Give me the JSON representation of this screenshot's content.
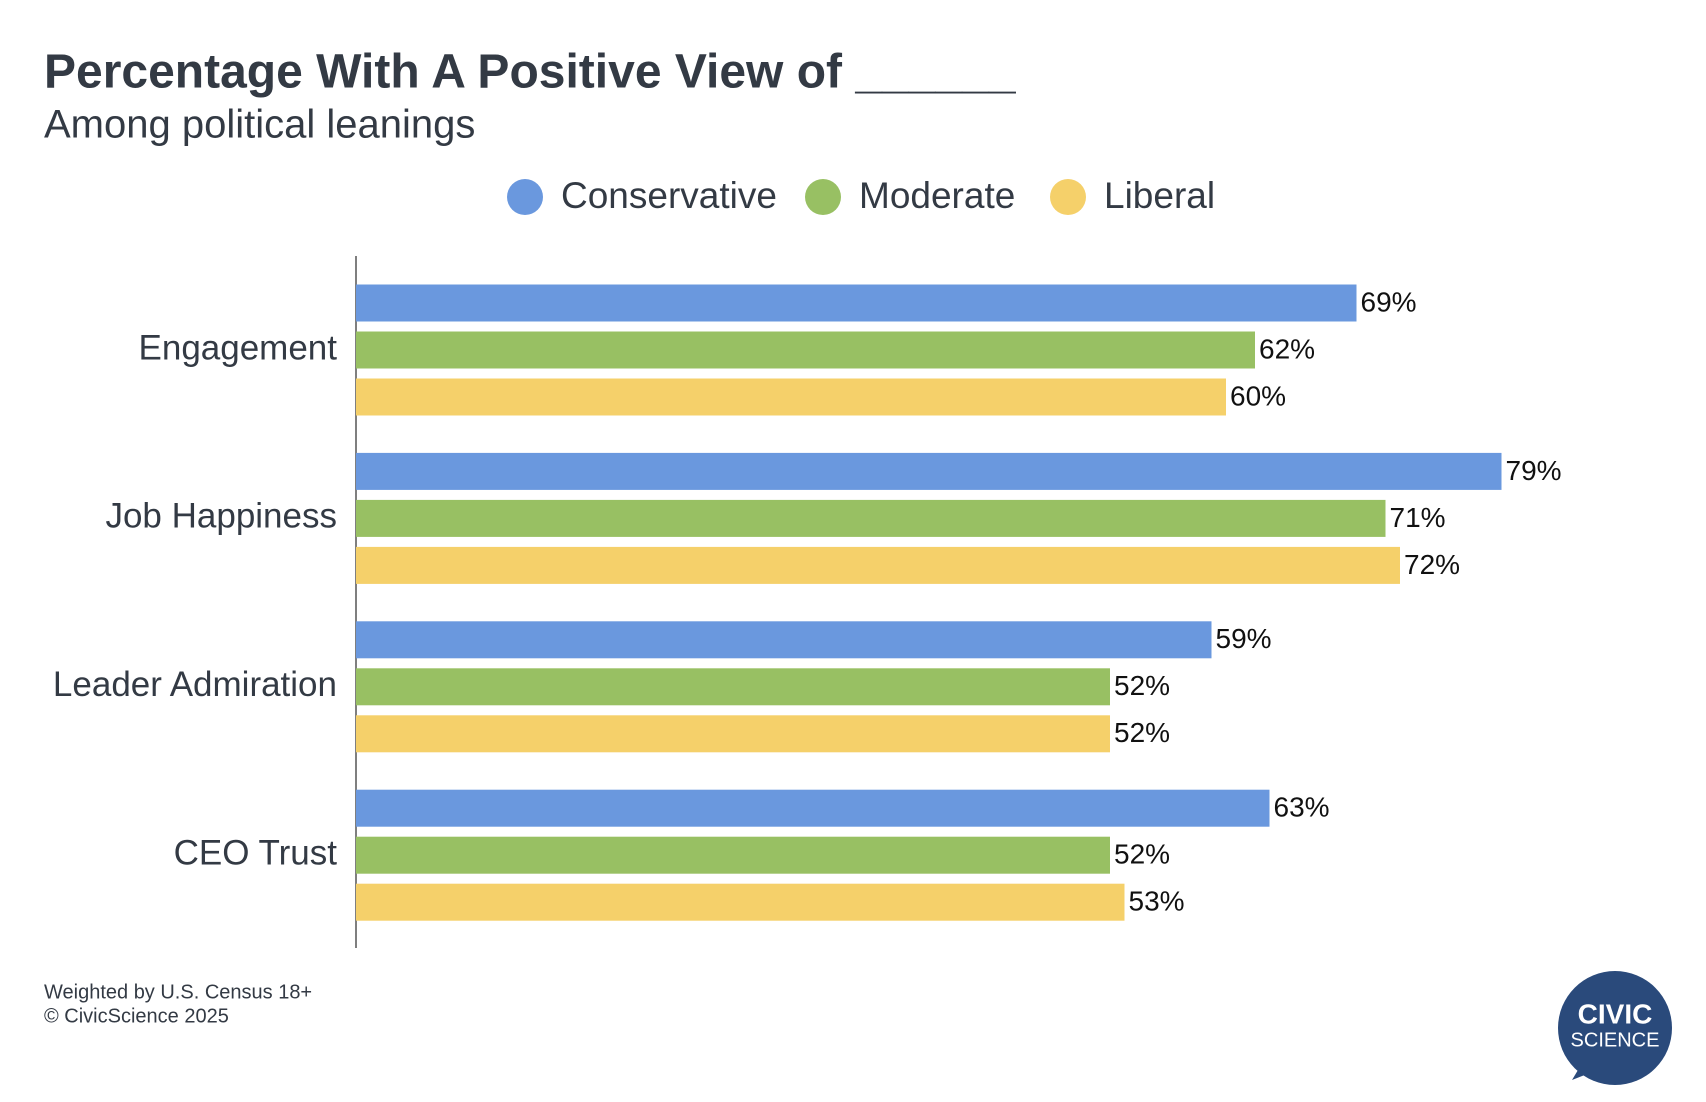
{
  "chart_data": {
    "type": "hbar",
    "title": "Percentage With A Positive View of ______",
    "subtitle": "Among political leanings",
    "categories": [
      "Engagement",
      "Job Happiness",
      "Leader Admiration",
      "CEO Trust"
    ],
    "series": [
      {
        "name": "Conservative",
        "color": "#6a98de",
        "values": [
          69,
          79,
          59,
          63
        ],
        "value_labels": [
          "69%",
          "79%",
          "59%",
          "63%"
        ]
      },
      {
        "name": "Moderate",
        "color": "#98c063",
        "values": [
          62,
          71,
          52,
          52
        ],
        "value_labels": [
          "62%",
          "71%",
          "52%",
          "52%"
        ]
      },
      {
        "name": "Liberal",
        "color": "#f5d06a",
        "values": [
          60,
          72,
          52,
          53
        ],
        "value_labels": [
          "60%",
          "72%",
          "52%",
          "53%"
        ]
      }
    ],
    "xlim": [
      0,
      100
    ],
    "legend": "top",
    "source": [
      "Weighted by U.S. Census 18+",
      "© CivicScience 2025"
    ],
    "logo": [
      "CIVIC",
      "SCIENCE"
    ]
  }
}
